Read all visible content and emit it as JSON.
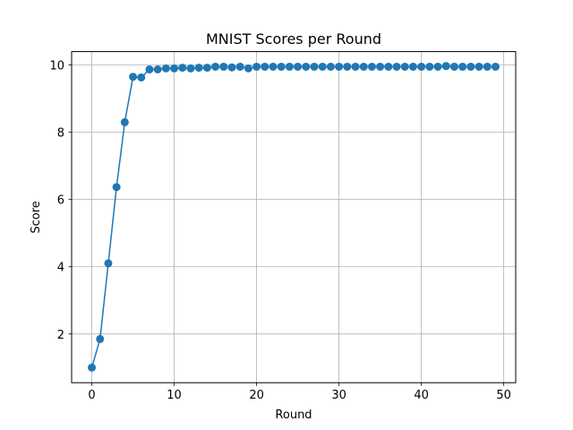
{
  "chart_data": {
    "type": "line",
    "title": "MNIST Scores per Round",
    "xlabel": "Round",
    "ylabel": "Score",
    "xlim": [
      -2.45,
      51.45
    ],
    "ylim": [
      0.55,
      10.4
    ],
    "xticks": [
      0,
      10,
      20,
      30,
      40,
      50
    ],
    "yticks": [
      2,
      4,
      6,
      8,
      10
    ],
    "grid": true,
    "series": [
      {
        "color": "#1f77b4",
        "marker": "circle",
        "x": [
          0,
          1,
          2,
          3,
          4,
          5,
          6,
          7,
          8,
          9,
          10,
          11,
          12,
          13,
          14,
          15,
          16,
          17,
          18,
          19,
          20,
          21,
          22,
          23,
          24,
          25,
          26,
          27,
          28,
          29,
          30,
          31,
          32,
          33,
          34,
          35,
          36,
          37,
          38,
          39,
          40,
          41,
          42,
          43,
          44,
          45,
          46,
          47,
          48,
          49
        ],
        "y": [
          1.0,
          1.85,
          4.1,
          6.37,
          8.3,
          9.65,
          9.63,
          9.87,
          9.87,
          9.9,
          9.9,
          9.92,
          9.9,
          9.92,
          9.92,
          9.95,
          9.95,
          9.93,
          9.95,
          9.9,
          9.95,
          9.95,
          9.95,
          9.95,
          9.95,
          9.95,
          9.95,
          9.95,
          9.95,
          9.95,
          9.95,
          9.95,
          9.95,
          9.95,
          9.95,
          9.95,
          9.95,
          9.95,
          9.95,
          9.95,
          9.95,
          9.95,
          9.95,
          9.97,
          9.95,
          9.95,
          9.95,
          9.95,
          9.95,
          9.95
        ]
      }
    ]
  }
}
